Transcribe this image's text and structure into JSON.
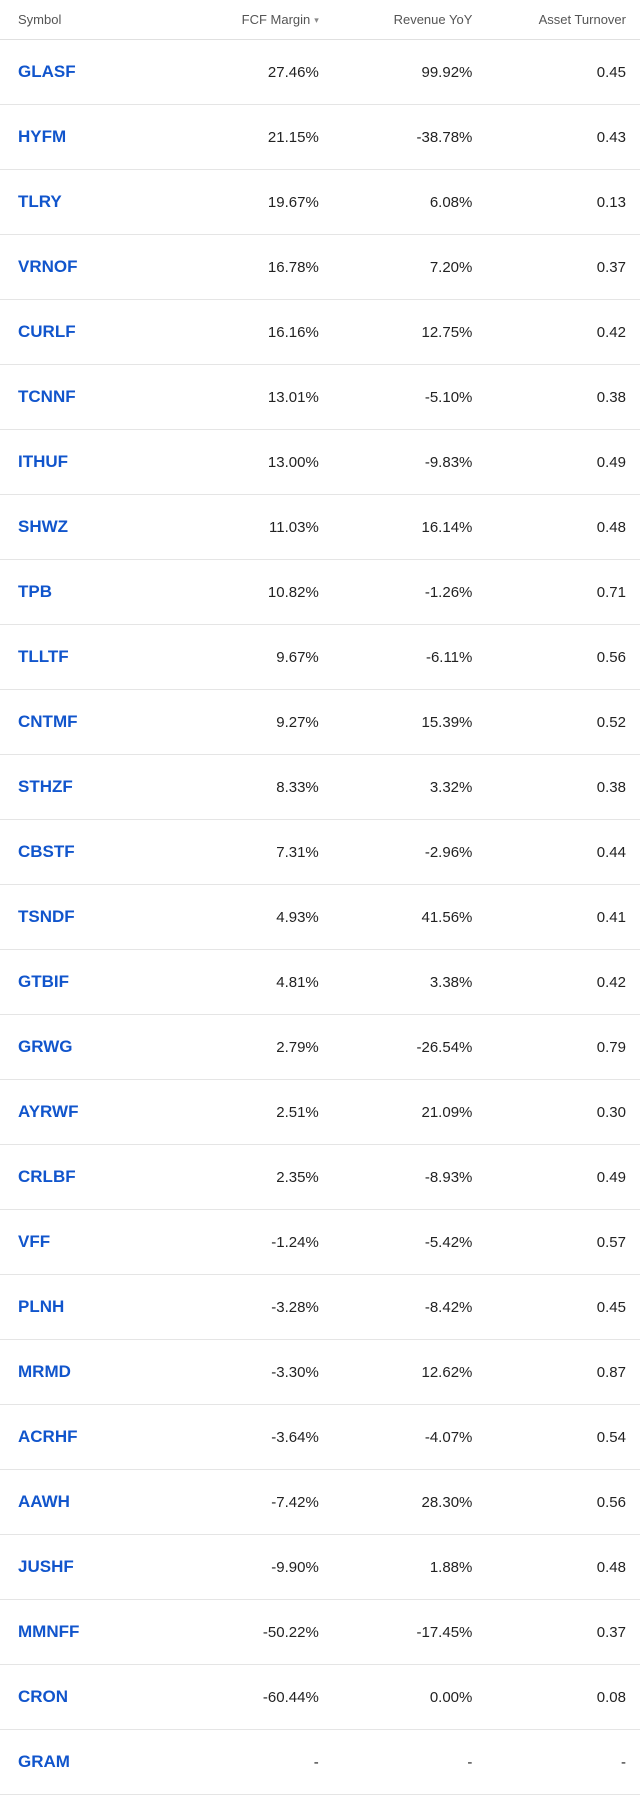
{
  "table": {
    "columns": [
      {
        "key": "symbol",
        "label": "Symbol",
        "align": "left",
        "sorted": false
      },
      {
        "key": "fcf",
        "label": "FCF Margin",
        "align": "right",
        "sorted": true
      },
      {
        "key": "rev",
        "label": "Revenue YoY",
        "align": "right",
        "sorted": false
      },
      {
        "key": "at",
        "label": "Asset Turnover",
        "align": "right",
        "sorted": false
      }
    ],
    "sort_indicator": "▾",
    "colors": {
      "link": "#1155cc",
      "text": "#222222",
      "header_text": "#555555",
      "border": "#e0e0e0",
      "background": "#ffffff"
    },
    "font_sizes": {
      "header": 13,
      "symbol": 17,
      "cell": 15
    },
    "rows": [
      {
        "symbol": "GLASF",
        "fcf": "27.46%",
        "rev": "99.92%",
        "at": "0.45"
      },
      {
        "symbol": "HYFM",
        "fcf": "21.15%",
        "rev": "-38.78%",
        "at": "0.43"
      },
      {
        "symbol": "TLRY",
        "fcf": "19.67%",
        "rev": "6.08%",
        "at": "0.13"
      },
      {
        "symbol": "VRNOF",
        "fcf": "16.78%",
        "rev": "7.20%",
        "at": "0.37"
      },
      {
        "symbol": "CURLF",
        "fcf": "16.16%",
        "rev": "12.75%",
        "at": "0.42"
      },
      {
        "symbol": "TCNNF",
        "fcf": "13.01%",
        "rev": "-5.10%",
        "at": "0.38"
      },
      {
        "symbol": "ITHUF",
        "fcf": "13.00%",
        "rev": "-9.83%",
        "at": "0.49"
      },
      {
        "symbol": "SHWZ",
        "fcf": "11.03%",
        "rev": "16.14%",
        "at": "0.48"
      },
      {
        "symbol": "TPB",
        "fcf": "10.82%",
        "rev": "-1.26%",
        "at": "0.71"
      },
      {
        "symbol": "TLLTF",
        "fcf": "9.67%",
        "rev": "-6.11%",
        "at": "0.56"
      },
      {
        "symbol": "CNTMF",
        "fcf": "9.27%",
        "rev": "15.39%",
        "at": "0.52"
      },
      {
        "symbol": "STHZF",
        "fcf": "8.33%",
        "rev": "3.32%",
        "at": "0.38"
      },
      {
        "symbol": "CBSTF",
        "fcf": "7.31%",
        "rev": "-2.96%",
        "at": "0.44"
      },
      {
        "symbol": "TSNDF",
        "fcf": "4.93%",
        "rev": "41.56%",
        "at": "0.41"
      },
      {
        "symbol": "GTBIF",
        "fcf": "4.81%",
        "rev": "3.38%",
        "at": "0.42"
      },
      {
        "symbol": "GRWG",
        "fcf": "2.79%",
        "rev": "-26.54%",
        "at": "0.79"
      },
      {
        "symbol": "AYRWF",
        "fcf": "2.51%",
        "rev": "21.09%",
        "at": "0.30"
      },
      {
        "symbol": "CRLBF",
        "fcf": "2.35%",
        "rev": "-8.93%",
        "at": "0.49"
      },
      {
        "symbol": "VFF",
        "fcf": "-1.24%",
        "rev": "-5.42%",
        "at": "0.57"
      },
      {
        "symbol": "PLNH",
        "fcf": "-3.28%",
        "rev": "-8.42%",
        "at": "0.45"
      },
      {
        "symbol": "MRMD",
        "fcf": "-3.30%",
        "rev": "12.62%",
        "at": "0.87"
      },
      {
        "symbol": "ACRHF",
        "fcf": "-3.64%",
        "rev": "-4.07%",
        "at": "0.54"
      },
      {
        "symbol": "AAWH",
        "fcf": "-7.42%",
        "rev": "28.30%",
        "at": "0.56"
      },
      {
        "symbol": "JUSHF",
        "fcf": "-9.90%",
        "rev": "1.88%",
        "at": "0.48"
      },
      {
        "symbol": "MMNFF",
        "fcf": "-50.22%",
        "rev": "-17.45%",
        "at": "0.37"
      },
      {
        "symbol": "CRON",
        "fcf": "-60.44%",
        "rev": "0.00%",
        "at": "0.08"
      },
      {
        "symbol": "GRAM",
        "fcf": "-",
        "rev": "-",
        "at": "-"
      }
    ]
  }
}
